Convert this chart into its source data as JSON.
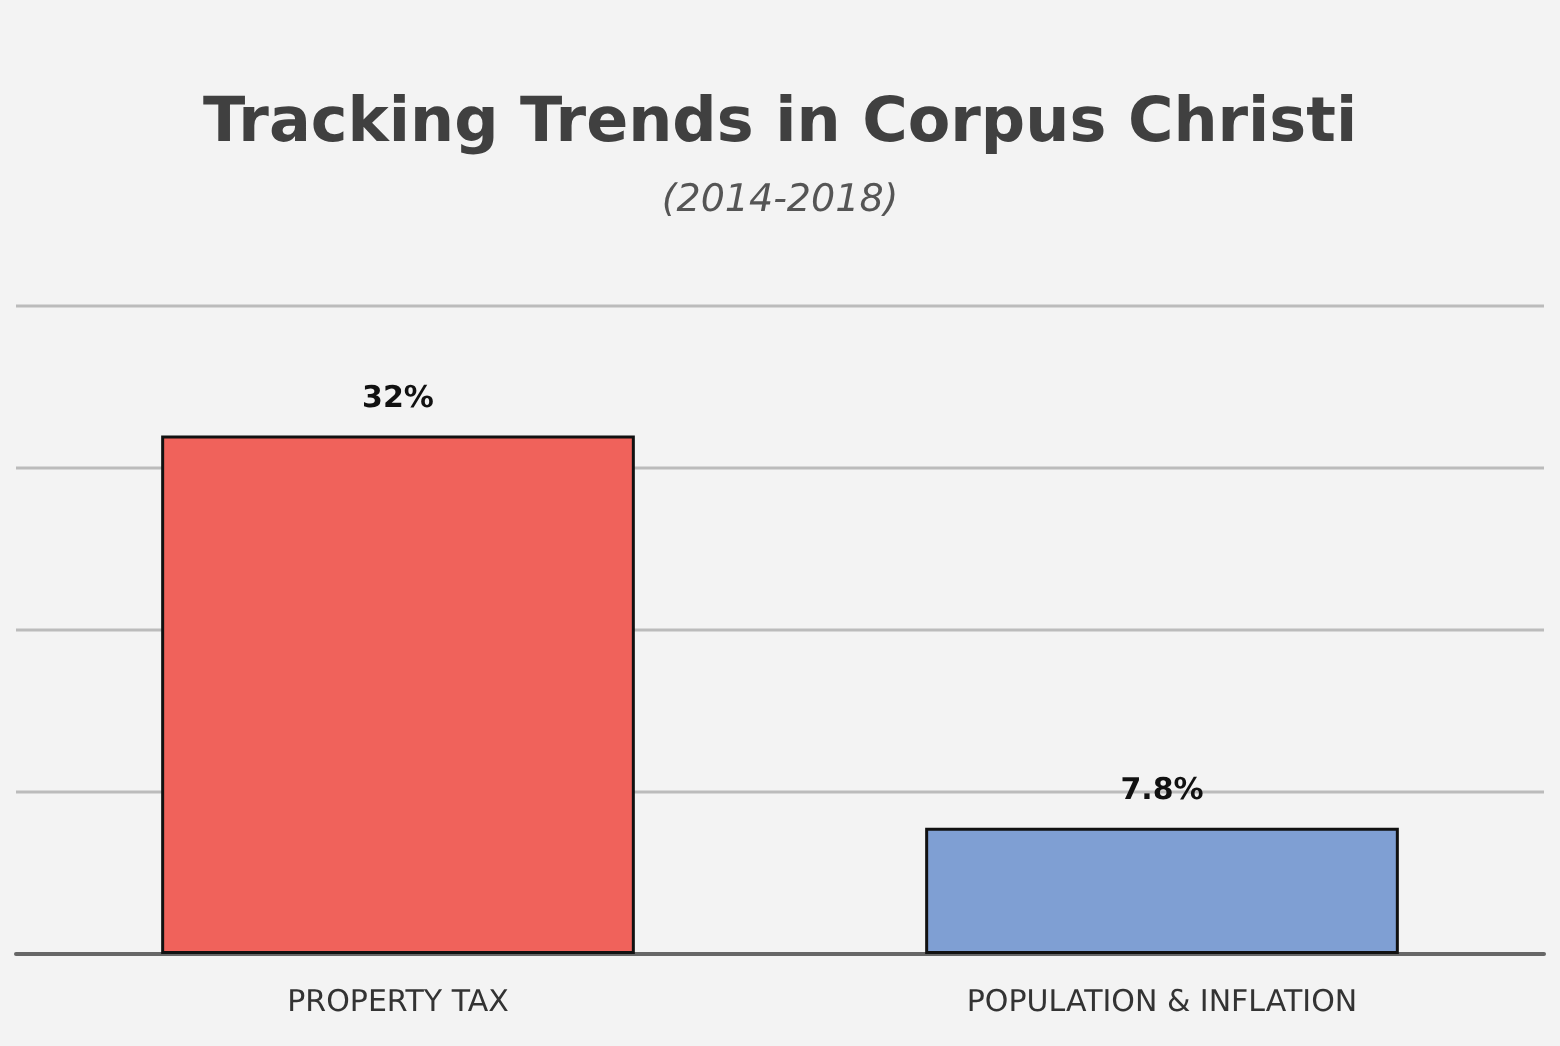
{
  "chart_data": {
    "type": "bar",
    "title": "Tracking Trends in Corpus Christi",
    "subtitle": "(2014-2018)",
    "categories": [
      "PROPERTY TAX",
      "POPULATION & INFLATION"
    ],
    "values": [
      32,
      7.8
    ],
    "colors": [
      "#f0625b",
      "#7f9fd3"
    ],
    "value_labels": [
      "32%",
      "7.8%"
    ],
    "ylim": [
      0,
      40
    ],
    "yticks": [
      {
        "value": 0,
        "label": null
      },
      {
        "value": 10,
        "label": null
      },
      {
        "value": 20,
        "label": null
      },
      {
        "value": 30,
        "label": null
      },
      {
        "value": 40,
        "label": null
      }
    ],
    "tick_labels": "x",
    "grid": "y"
  }
}
